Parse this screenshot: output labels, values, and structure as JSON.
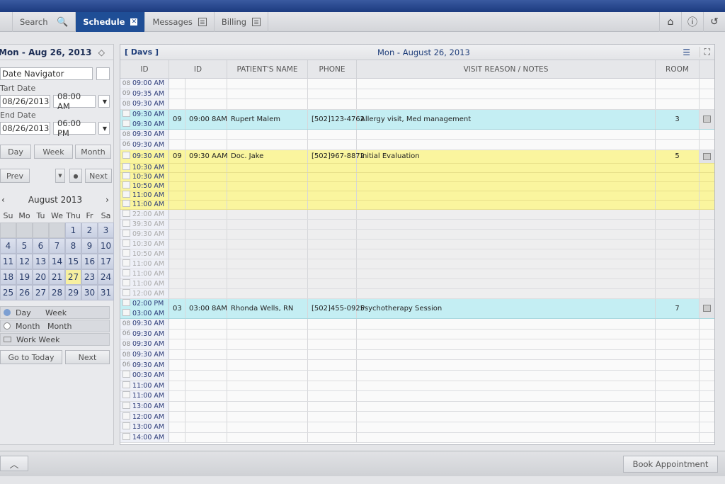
{
  "tabs": [
    {
      "label": "Search",
      "icon": "search-icon"
    },
    {
      "label": "Schedule",
      "icon": "close-icon",
      "active": true
    },
    {
      "label": "Messages",
      "icon": "list-icon"
    },
    {
      "label": "Billing",
      "icon": "menu-icon"
    }
  ],
  "tab_icons": [
    "home-icon",
    "info-icon",
    "history-icon"
  ],
  "sidebar": {
    "date": "Mon - Aug 26, 2013",
    "navigator": "Date Navigator",
    "start_label": "Tart Date",
    "start_date": "08/26/2013",
    "start_time": "08:00 AM",
    "end_label": "End Date",
    "end_date": "08/26/2013",
    "end_time": "06:00 PM",
    "view_buttons": [
      "Day",
      "Week",
      "Month"
    ],
    "prev": "Prev",
    "next": "Next",
    "calendar": {
      "title": "August 2013",
      "dow": [
        "Su",
        "Mo",
        "Tu",
        "We",
        "Thu",
        "Fr",
        "Sa"
      ],
      "lead_empty": 4,
      "days": [
        "1",
        "2",
        "3",
        "4",
        "5",
        "6",
        "7",
        "8",
        "9",
        "10",
        "11",
        "12",
        "13",
        "14",
        "15",
        "16",
        "17",
        "18",
        "19",
        "20",
        "21",
        "27",
        "23",
        "24",
        "25",
        "26",
        "27",
        "28",
        "29",
        "30",
        "31"
      ],
      "highlight_index": 21
    },
    "options": [
      {
        "a": "Day",
        "b": "Week",
        "icon": "radio-checked-icon"
      },
      {
        "a": "Month",
        "b": "Month",
        "icon": "radio-icon"
      },
      {
        "a": "Work Week",
        "b": "",
        "icon": "folder-icon"
      }
    ],
    "go_today": "Go to Today",
    "next2": "Next"
  },
  "main": {
    "view_label": "[ Davs ]",
    "date_title": "Mon - August 26, 2013",
    "columns": [
      "ID",
      "ID",
      "PATIENT'S NAME",
      "PHONE",
      "VISIT REASON / NOTES",
      "ROOM"
    ],
    "rows": [
      {
        "type": "plain",
        "times": [
          [
            "08",
            "09:00 AM"
          ]
        ]
      },
      {
        "type": "plain",
        "times": [
          [
            "09",
            "09:35 AM"
          ]
        ]
      },
      {
        "type": "plain",
        "times": [
          [
            "08",
            "09:30 AM"
          ]
        ]
      },
      {
        "type": "cyan",
        "times": [
          [
            "",
            "09:30 AM"
          ],
          [
            "",
            "09:30 AM"
          ]
        ],
        "id": "09",
        "start": "09:00 8AM",
        "name": "Rupert Malem",
        "phone": "[502]123-4762",
        "notes": "Allergy visit, Med management",
        "room": "3"
      },
      {
        "type": "plain",
        "times": [
          [
            "08",
            "09:30 AM"
          ]
        ]
      },
      {
        "type": "plain",
        "times": [
          [
            "06",
            "09:30 AM"
          ]
        ]
      },
      {
        "type": "yellow",
        "times": [
          [
            "",
            "09:30 AM"
          ]
        ],
        "id": "09",
        "start": "09:30 AAM",
        "name": "Doc. Jake",
        "phone": "[502]967-8872",
        "notes": "Initial Evaluation",
        "room": "5"
      },
      {
        "type": "yellow",
        "times": [
          [
            "",
            "10:30 AM"
          ]
        ]
      },
      {
        "type": "yellow",
        "times": [
          [
            "",
            "10:30 AM"
          ]
        ]
      },
      {
        "type": "yellow",
        "times": [
          [
            "",
            "10:50 AM"
          ]
        ]
      },
      {
        "type": "yellow",
        "times": [
          [
            "",
            "11:00 AM"
          ]
        ]
      },
      {
        "type": "yellow",
        "times": [
          [
            "",
            "11:00 AM"
          ]
        ]
      },
      {
        "type": "gray",
        "times": [
          [
            "",
            "22:00 AM"
          ]
        ]
      },
      {
        "type": "gray",
        "times": [
          [
            "",
            "39:30 AM"
          ]
        ]
      },
      {
        "type": "gray",
        "times": [
          [
            "",
            "09:30 AM"
          ]
        ]
      },
      {
        "type": "gray",
        "times": [
          [
            "",
            "10:30 AM"
          ]
        ]
      },
      {
        "type": "gray",
        "times": [
          [
            "",
            "10:50 AM"
          ]
        ]
      },
      {
        "type": "gray",
        "times": [
          [
            "",
            "11:00 AM"
          ]
        ]
      },
      {
        "type": "gray",
        "times": [
          [
            "",
            "11:00 AM"
          ]
        ]
      },
      {
        "type": "gray",
        "times": [
          [
            "",
            "11:00 AM"
          ]
        ]
      },
      {
        "type": "gray",
        "times": [
          [
            "",
            "12:00 AM"
          ]
        ]
      },
      {
        "type": "cyan",
        "times": [
          [
            "",
            "02:00 PM"
          ],
          [
            "",
            "03:00 AM"
          ]
        ],
        "id": "03",
        "start": "03:00 8AM",
        "name": "Rhonda Wells, RN",
        "phone": "[502]455-0925",
        "notes": "Psychotherapy Session",
        "room": "7"
      },
      {
        "type": "plain",
        "times": [
          [
            "08",
            "09:30 AM"
          ]
        ]
      },
      {
        "type": "plain",
        "times": [
          [
            "06",
            "09:30 AM"
          ]
        ]
      },
      {
        "type": "plain",
        "times": [
          [
            "08",
            "09:30 AM"
          ]
        ]
      },
      {
        "type": "plain",
        "times": [
          [
            "08",
            "09:30 AM"
          ]
        ]
      },
      {
        "type": "plain",
        "times": [
          [
            "06",
            "09:30 AM"
          ]
        ]
      },
      {
        "type": "plain",
        "times": [
          [
            "",
            "00:30 AM"
          ]
        ]
      },
      {
        "type": "plain",
        "times": [
          [
            "",
            "11:00 AM"
          ]
        ]
      },
      {
        "type": "plain",
        "times": [
          [
            "",
            "11:00 AM"
          ]
        ]
      },
      {
        "type": "plain",
        "times": [
          [
            "",
            "13:00 AM"
          ]
        ]
      },
      {
        "type": "plain",
        "times": [
          [
            "",
            "12:00 AM"
          ]
        ]
      },
      {
        "type": "plain",
        "times": [
          [
            "",
            "13:00 AM"
          ]
        ]
      },
      {
        "type": "plain",
        "times": [
          [
            "",
            "14:00 AM"
          ]
        ]
      }
    ]
  },
  "footer": {
    "book": "Book Appointment"
  }
}
